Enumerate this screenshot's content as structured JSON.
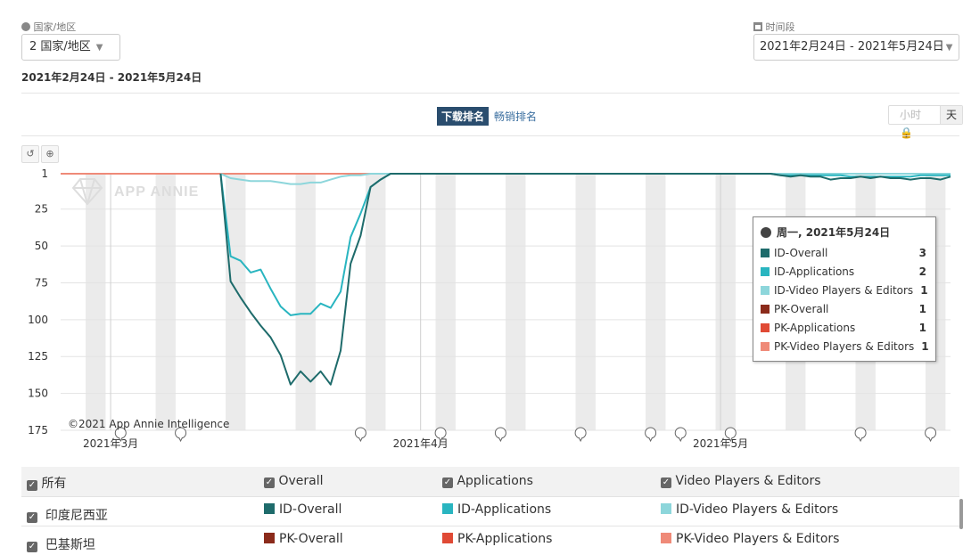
{
  "filters": {
    "country_label": "国家/地区",
    "country_value": "2 国家/地区",
    "period_label": "时间段",
    "period_value": "2021年2月24日 - 2021年5月24日"
  },
  "range_title": "2021年2月24日 - 2021年5月24日",
  "tabs": {
    "active": "下载排名",
    "other": "畅销排名"
  },
  "granularity": {
    "hour": "小时",
    "day": "天"
  },
  "icons": {
    "globe": "globe-icon",
    "calendar": "calendar-icon",
    "reset": "undo-icon",
    "zoom": "zoom-in-icon",
    "lock": "lock-icon"
  },
  "chart_data": {
    "type": "line",
    "yaxis": {
      "reversed": true,
      "ticks": [
        1,
        25,
        50,
        75,
        100,
        125,
        150,
        175
      ],
      "ylim": [
        1,
        175
      ]
    },
    "x_dates": [
      "2021-02-24",
      "2021-02-25",
      "2021-02-26",
      "2021-02-27",
      "2021-02-28",
      "2021-03-01",
      "2021-03-02",
      "2021-03-03",
      "2021-03-04",
      "2021-03-05",
      "2021-03-06",
      "2021-03-07",
      "2021-03-08",
      "2021-03-09",
      "2021-03-10",
      "2021-03-11",
      "2021-03-12",
      "2021-03-13",
      "2021-03-14",
      "2021-03-15",
      "2021-03-16",
      "2021-03-17",
      "2021-03-18",
      "2021-03-19",
      "2021-03-20",
      "2021-03-21",
      "2021-03-22",
      "2021-03-23",
      "2021-03-24",
      "2021-03-25",
      "2021-03-26",
      "2021-03-27",
      "2021-03-28",
      "2021-03-29",
      "2021-03-30",
      "2021-03-31",
      "2021-04-01",
      "2021-04-02",
      "2021-04-03",
      "2021-04-04",
      "2021-04-05",
      "2021-04-06",
      "2021-04-07",
      "2021-04-08",
      "2021-04-09",
      "2021-04-10",
      "2021-04-11",
      "2021-04-12",
      "2021-04-13",
      "2021-04-14",
      "2021-04-15",
      "2021-04-16",
      "2021-04-17",
      "2021-04-18",
      "2021-04-19",
      "2021-04-20",
      "2021-04-21",
      "2021-04-22",
      "2021-04-23",
      "2021-04-24",
      "2021-04-25",
      "2021-04-26",
      "2021-04-27",
      "2021-04-28",
      "2021-04-29",
      "2021-04-30",
      "2021-05-01",
      "2021-05-02",
      "2021-05-03",
      "2021-05-04",
      "2021-05-05",
      "2021-05-06",
      "2021-05-07",
      "2021-05-08",
      "2021-05-09",
      "2021-05-10",
      "2021-05-11",
      "2021-05-12",
      "2021-05-13",
      "2021-05-14",
      "2021-05-15",
      "2021-05-16",
      "2021-05-17",
      "2021-05-18",
      "2021-05-19",
      "2021-05-20",
      "2021-05-21",
      "2021-05-22",
      "2021-05-23",
      "2021-05-24"
    ],
    "x_labels": [
      {
        "date": "2021-03-01",
        "text": "2021年3月"
      },
      {
        "date": "2021-04-01",
        "text": "2021年4月"
      },
      {
        "date": "2021-05-01",
        "text": "2021年5月"
      }
    ],
    "weekend_starts": [
      "2021-02-27",
      "2021-03-06",
      "2021-03-13",
      "2021-03-20",
      "2021-03-27",
      "2021-04-03",
      "2021-04-10",
      "2021-04-17",
      "2021-04-24",
      "2021-05-01",
      "2021-05-08",
      "2021-05-15",
      "2021-05-22"
    ],
    "annotation_dates": [
      "2021-03-02",
      "2021-03-08",
      "2021-03-26",
      "2021-04-03",
      "2021-04-09",
      "2021-04-17",
      "2021-04-24",
      "2021-04-27",
      "2021-05-02",
      "2021-05-15",
      "2021-05-22"
    ],
    "series": [
      {
        "name": "ID-Overall",
        "color": "#1e6b6b",
        "values": [
          null,
          null,
          null,
          null,
          null,
          null,
          null,
          null,
          null,
          null,
          null,
          null,
          null,
          null,
          null,
          null,
          1,
          74,
          85,
          95,
          104,
          112,
          124,
          144,
          135,
          142,
          135,
          144,
          121,
          62,
          43,
          10,
          5,
          1,
          1,
          1,
          1,
          1,
          1,
          1,
          1,
          1,
          1,
          1,
          1,
          1,
          1,
          1,
          1,
          1,
          1,
          1,
          1,
          1,
          1,
          1,
          1,
          1,
          1,
          1,
          1,
          1,
          1,
          1,
          1,
          1,
          1,
          1,
          1,
          1,
          1,
          1,
          2,
          3,
          2,
          3,
          3,
          5,
          4,
          4,
          3,
          4,
          3,
          4,
          4,
          5,
          4,
          4,
          5,
          3
        ]
      },
      {
        "name": "ID-Applications",
        "color": "#29b5c0",
        "values": [
          null,
          null,
          null,
          null,
          null,
          null,
          null,
          null,
          null,
          null,
          null,
          null,
          null,
          null,
          null,
          null,
          1,
          57,
          60,
          68,
          66,
          79,
          91,
          97,
          96,
          96,
          89,
          92,
          81,
          44,
          28,
          10,
          5,
          1,
          1,
          1,
          1,
          1,
          1,
          1,
          1,
          1,
          1,
          1,
          1,
          1,
          1,
          1,
          1,
          1,
          1,
          1,
          1,
          1,
          1,
          1,
          1,
          1,
          1,
          1,
          1,
          1,
          1,
          1,
          1,
          1,
          1,
          1,
          1,
          1,
          1,
          1,
          2,
          2,
          2,
          2,
          2,
          2,
          2,
          3,
          3,
          3,
          3,
          3,
          3,
          3,
          2,
          2,
          2,
          2
        ]
      },
      {
        "name": "ID-Video Players & Editors",
        "color": "#8dd6db",
        "values": [
          null,
          null,
          null,
          null,
          null,
          null,
          null,
          null,
          null,
          null,
          null,
          null,
          null,
          null,
          null,
          null,
          1,
          4,
          5,
          6,
          6,
          6,
          7,
          8,
          8,
          7,
          7,
          5,
          3,
          2,
          2,
          1,
          1,
          1,
          1,
          1,
          1,
          1,
          1,
          1,
          1,
          1,
          1,
          1,
          1,
          1,
          1,
          1,
          1,
          1,
          1,
          1,
          1,
          1,
          1,
          1,
          1,
          1,
          1,
          1,
          1,
          1,
          1,
          1,
          1,
          1,
          1,
          1,
          1,
          1,
          1,
          1,
          1,
          1,
          1,
          1,
          1,
          1,
          1,
          1,
          1,
          1,
          1,
          1,
          1,
          1,
          1,
          1,
          1,
          1
        ]
      },
      {
        "name": "PK-Overall",
        "color": "#8b2b1b",
        "values": [
          1,
          1,
          1,
          1,
          1,
          1,
          1,
          1,
          1,
          1,
          1,
          1,
          1,
          1,
          1,
          1,
          1,
          1,
          1,
          1,
          1,
          1,
          1,
          1,
          1,
          1,
          1,
          1,
          1,
          1,
          1,
          1,
          1,
          1,
          1,
          1,
          1,
          1,
          1,
          1,
          1,
          1,
          1,
          1,
          1,
          1,
          1,
          1,
          1,
          1,
          1,
          1,
          1,
          1,
          1,
          1,
          1,
          1,
          1,
          1,
          1,
          1,
          1,
          1,
          1,
          1,
          1,
          1,
          1,
          1,
          1,
          1,
          1,
          1,
          1,
          1,
          1,
          1,
          1,
          1,
          1,
          1,
          1,
          1,
          1,
          1,
          1,
          1,
          1,
          1
        ]
      },
      {
        "name": "PK-Applications",
        "color": "#e04a35",
        "values": [
          1,
          1,
          1,
          1,
          1,
          1,
          1,
          1,
          1,
          1,
          1,
          1,
          1,
          1,
          1,
          1,
          1,
          1,
          1,
          1,
          1,
          1,
          1,
          1,
          1,
          1,
          1,
          1,
          1,
          1,
          1,
          1,
          1,
          1,
          1,
          1,
          1,
          1,
          1,
          1,
          1,
          1,
          1,
          1,
          1,
          1,
          1,
          1,
          1,
          1,
          1,
          1,
          1,
          1,
          1,
          1,
          1,
          1,
          1,
          1,
          1,
          1,
          1,
          1,
          1,
          1,
          1,
          1,
          1,
          1,
          1,
          1,
          1,
          1,
          1,
          1,
          1,
          1,
          1,
          1,
          1,
          1,
          1,
          1,
          1,
          1,
          1,
          1,
          1,
          1
        ]
      },
      {
        "name": "PK-Video Players & Editors",
        "color": "#ef8a78",
        "values": [
          1,
          1,
          1,
          1,
          1,
          1,
          1,
          1,
          1,
          1,
          1,
          1,
          1,
          1,
          1,
          1,
          1,
          1,
          1,
          1,
          1,
          1,
          1,
          1,
          1,
          1,
          1,
          1,
          1,
          1,
          1,
          1,
          1,
          1,
          1,
          1,
          1,
          1,
          1,
          1,
          1,
          1,
          1,
          1,
          1,
          1,
          1,
          1,
          1,
          1,
          1,
          1,
          1,
          1,
          1,
          1,
          1,
          1,
          1,
          1,
          1,
          1,
          1,
          1,
          1,
          1,
          1,
          1,
          1,
          1,
          1,
          1,
          1,
          1,
          1,
          1,
          1,
          1,
          1,
          1,
          1,
          1,
          1,
          1,
          1,
          1,
          1,
          1,
          1,
          1
        ]
      }
    ],
    "watermark": "APP ANNIE",
    "copyright": "©2021 App Annie Intelligence"
  },
  "tooltip": {
    "title": "周一, 2021年5月24日",
    "rows": [
      {
        "name": "ID-Overall",
        "value": "3",
        "color": "#1e6b6b"
      },
      {
        "name": "ID-Applications",
        "value": "2",
        "color": "#29b5c0"
      },
      {
        "name": "ID-Video Players & Editors",
        "value": "1",
        "color": "#8dd6db"
      },
      {
        "name": "PK-Overall",
        "value": "1",
        "color": "#8b2b1b"
      },
      {
        "name": "PK-Applications",
        "value": "1",
        "color": "#e04a35"
      },
      {
        "name": "PK-Video Players & Editors",
        "value": "1",
        "color": "#ef8a78"
      }
    ]
  },
  "legend_table": {
    "header": {
      "all": "所有",
      "col1": "Overall",
      "col2": "Applications",
      "col3": "Video Players & Editors"
    },
    "rows": [
      {
        "country": "印度尼西亚",
        "c1": "ID-Overall",
        "c1_color": "#1e6b6b",
        "c2": "ID-Applications",
        "c2_color": "#29b5c0",
        "c3": "ID-Video Players & Editors",
        "c3_color": "#8dd6db"
      },
      {
        "country": "巴基斯坦",
        "c1": "PK-Overall",
        "c1_color": "#8b2b1b",
        "c2": "PK-Applications",
        "c2_color": "#e04a35",
        "c3": "PK-Video Players & Editors",
        "c3_color": "#ef8a78"
      }
    ]
  }
}
